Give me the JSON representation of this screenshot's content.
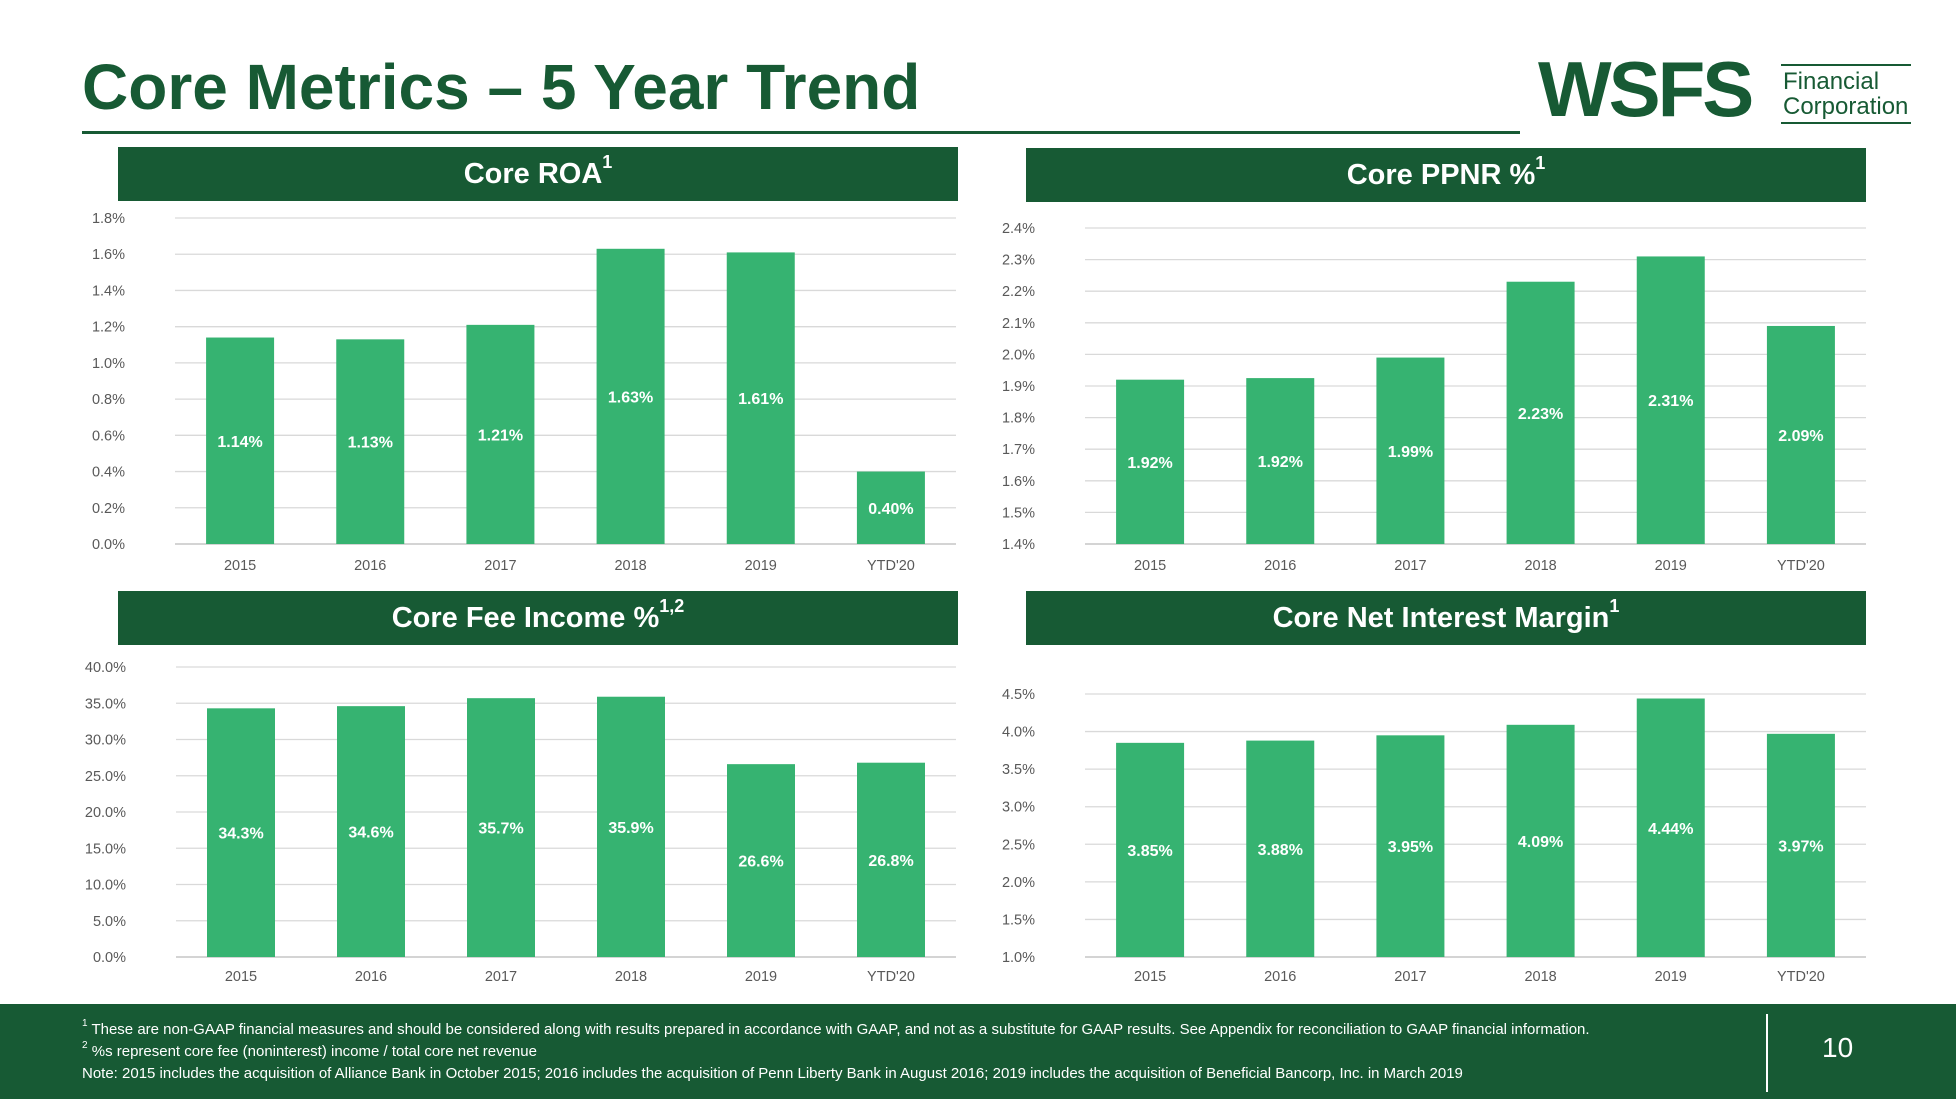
{
  "page": {
    "title": "Core Metrics – 5 Year Trend",
    "logo": {
      "mark": "WSFS",
      "line1": "Financial",
      "line2": "Corporation"
    },
    "page_number": "10",
    "footnotes": [
      {
        "sup": "1",
        "text": " These are non-GAAP financial measures and should be considered along with results prepared in accordance with GAAP, and not as a substitute for GAAP results. See Appendix for reconciliation to GAAP financial information."
      },
      {
        "sup": "2",
        "text": " %s represent core fee (noninterest) income / total core net revenue"
      },
      {
        "sup": "",
        "text": "Note: 2015 includes the acquisition of Alliance Bank in October 2015; 2016 includes the acquisition of Penn Liberty Bank in August 2016; 2019 includes the acquisition of Beneficial Bancorp, Inc. in March 2019"
      }
    ]
  },
  "colors": {
    "brand_green": "#175a34",
    "bar_green": "#36b371",
    "grid": "#d9d9d9",
    "axis_text": "#595959"
  },
  "chart_data": [
    {
      "type": "bar",
      "title": "Core ROA",
      "title_sup": "1",
      "categories": [
        "2015",
        "2016",
        "2017",
        "2018",
        "2019",
        "YTD'20"
      ],
      "values": [
        1.14,
        1.13,
        1.21,
        1.63,
        1.61,
        0.4
      ],
      "labels": [
        "1.14%",
        "1.13%",
        "1.21%",
        "1.63%",
        "1.61%",
        "0.40%"
      ],
      "yticks": [
        "0.0%",
        "0.2%",
        "0.4%",
        "0.6%",
        "0.8%",
        "1.0%",
        "1.2%",
        "1.4%",
        "1.6%",
        "1.8%"
      ],
      "ylim": [
        0,
        1.8
      ],
      "ystep": 0.2,
      "xlabel": "",
      "ylabel": "",
      "grid": true
    },
    {
      "type": "bar",
      "title": "Core PPNR %",
      "title_sup": "1",
      "categories": [
        "2015",
        "2016",
        "2017",
        "2018",
        "2019",
        "YTD'20"
      ],
      "values": [
        1.92,
        1.925,
        1.99,
        2.23,
        2.31,
        2.09
      ],
      "labels": [
        "1.92%",
        "1.92%",
        "1.99%",
        "2.23%",
        "2.31%",
        "2.09%"
      ],
      "yticks": [
        "1.4%",
        "1.5%",
        "1.6%",
        "1.7%",
        "1.8%",
        "1.9%",
        "2.0%",
        "2.1%",
        "2.2%",
        "2.3%",
        "2.4%"
      ],
      "ylim": [
        1.4,
        2.4
      ],
      "ystep": 0.1,
      "xlabel": "",
      "ylabel": "",
      "grid": true
    },
    {
      "type": "bar",
      "title": "Core Fee Income %",
      "title_sup": "1,2",
      "categories": [
        "2015",
        "2016",
        "2017",
        "2018",
        "2019",
        "YTD'20"
      ],
      "values": [
        34.3,
        34.6,
        35.7,
        35.9,
        26.6,
        26.8
      ],
      "labels": [
        "34.3%",
        "34.6%",
        "35.7%",
        "35.9%",
        "26.6%",
        "26.8%"
      ],
      "yticks": [
        "0.0%",
        "5.0%",
        "10.0%",
        "15.0%",
        "20.0%",
        "25.0%",
        "30.0%",
        "35.0%",
        "40.0%"
      ],
      "ylim": [
        0,
        40
      ],
      "ystep": 5,
      "xlabel": "",
      "ylabel": "",
      "grid": true
    },
    {
      "type": "bar",
      "title": "Core Net Interest Margin",
      "title_sup": "1",
      "categories": [
        "2015",
        "2016",
        "2017",
        "2018",
        "2019",
        "YTD'20"
      ],
      "values": [
        3.85,
        3.88,
        3.95,
        4.09,
        4.44,
        3.97
      ],
      "labels": [
        "3.85%",
        "3.88%",
        "3.95%",
        "4.09%",
        "4.44%",
        "3.97%"
      ],
      "yticks": [
        "1.0%",
        "1.5%",
        "2.0%",
        "2.5%",
        "3.0%",
        "3.5%",
        "4.0%",
        "4.5%"
      ],
      "ylim": [
        1.0,
        4.5
      ],
      "ystep": 0.5,
      "xlabel": "",
      "ylabel": "",
      "grid": true
    }
  ]
}
